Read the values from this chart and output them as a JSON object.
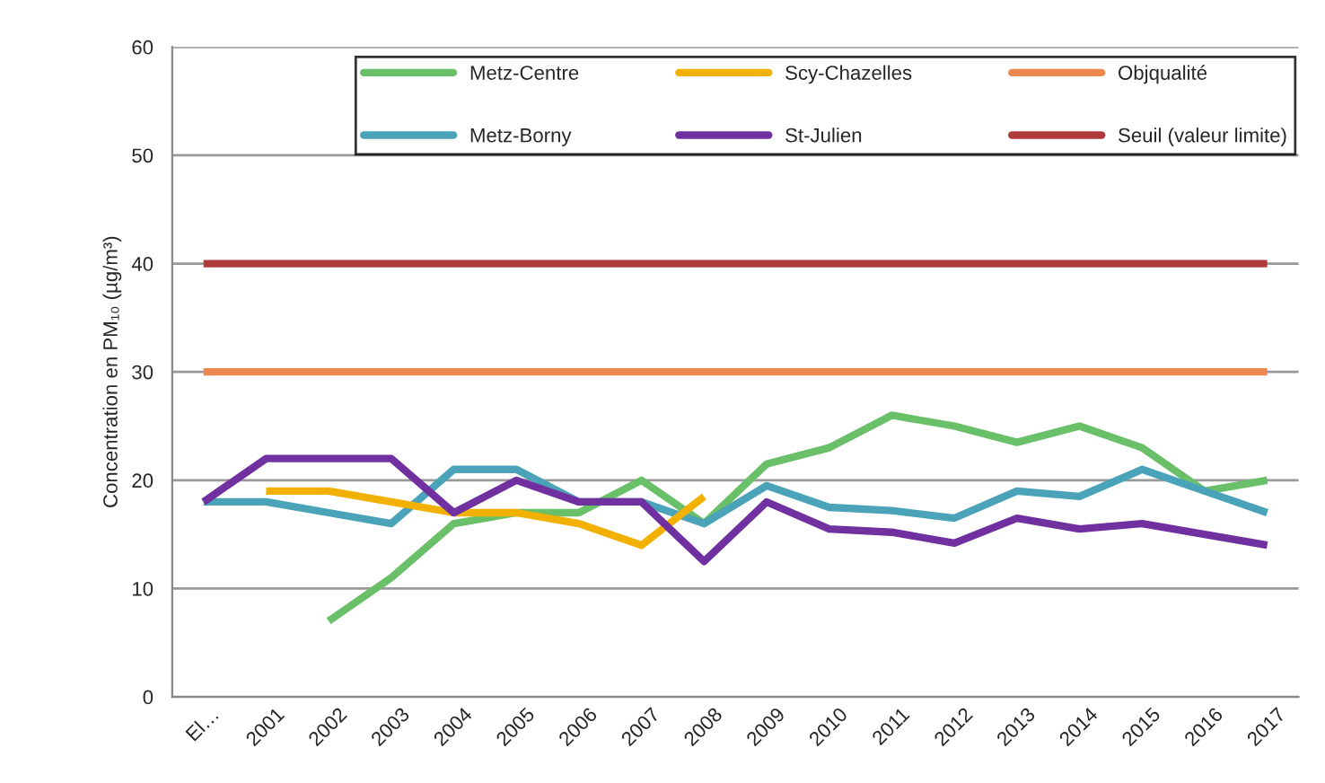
{
  "chart_data": {
    "type": "line",
    "ylabel": "Concentration en PM₁₀ (µg/m³)",
    "categories": [
      "El…",
      "2001",
      "2002",
      "2003",
      "2004",
      "2005",
      "2006",
      "2007",
      "2008",
      "2009",
      "2010",
      "2011",
      "2012",
      "2013",
      "2014",
      "2015",
      "2016",
      "2017"
    ],
    "series": [
      {
        "name": "Metz-Centre",
        "color": "#6abf69",
        "values": [
          null,
          null,
          7,
          11,
          16,
          17,
          17,
          20,
          16,
          21.5,
          23,
          26,
          25,
          23.5,
          25,
          23,
          19,
          20
        ]
      },
      {
        "name": "Metz-Borny",
        "color": "#4aa3b8",
        "values": [
          18,
          18,
          17,
          16,
          21,
          21,
          18,
          18,
          16,
          19.5,
          17.5,
          17.2,
          16.5,
          19,
          18.5,
          21,
          19,
          17
        ]
      },
      {
        "name": "Scy-Chazelles",
        "color": "#f2b100",
        "values": [
          null,
          19,
          19,
          18,
          17,
          17,
          16,
          14,
          18.5,
          null,
          null,
          null,
          null,
          null,
          null,
          null,
          null,
          null
        ]
      },
      {
        "name": "St-Julien",
        "color": "#7030a0",
        "values": [
          18,
          22,
          22,
          22,
          17,
          20,
          18,
          18,
          12.5,
          18,
          15.5,
          15.2,
          14.2,
          16.5,
          15.5,
          16,
          15,
          14
        ]
      },
      {
        "name": "Objqualité",
        "color": "#ed8750",
        "values": [
          30,
          30,
          30,
          30,
          30,
          30,
          30,
          30,
          30,
          30,
          30,
          30,
          30,
          30,
          30,
          30,
          30,
          30
        ]
      },
      {
        "name": "Seuil (valeur limite)",
        "color": "#b03a3a",
        "values": [
          40,
          40,
          40,
          40,
          40,
          40,
          40,
          40,
          40,
          40,
          40,
          40,
          40,
          40,
          40,
          40,
          40,
          40
        ]
      }
    ],
    "ylim": [
      0,
      60
    ],
    "yticks": [
      0,
      10,
      20,
      30,
      40,
      50,
      60
    ],
    "grid": "y",
    "legend": "top",
    "marker": "none",
    "line_style": "solid"
  }
}
